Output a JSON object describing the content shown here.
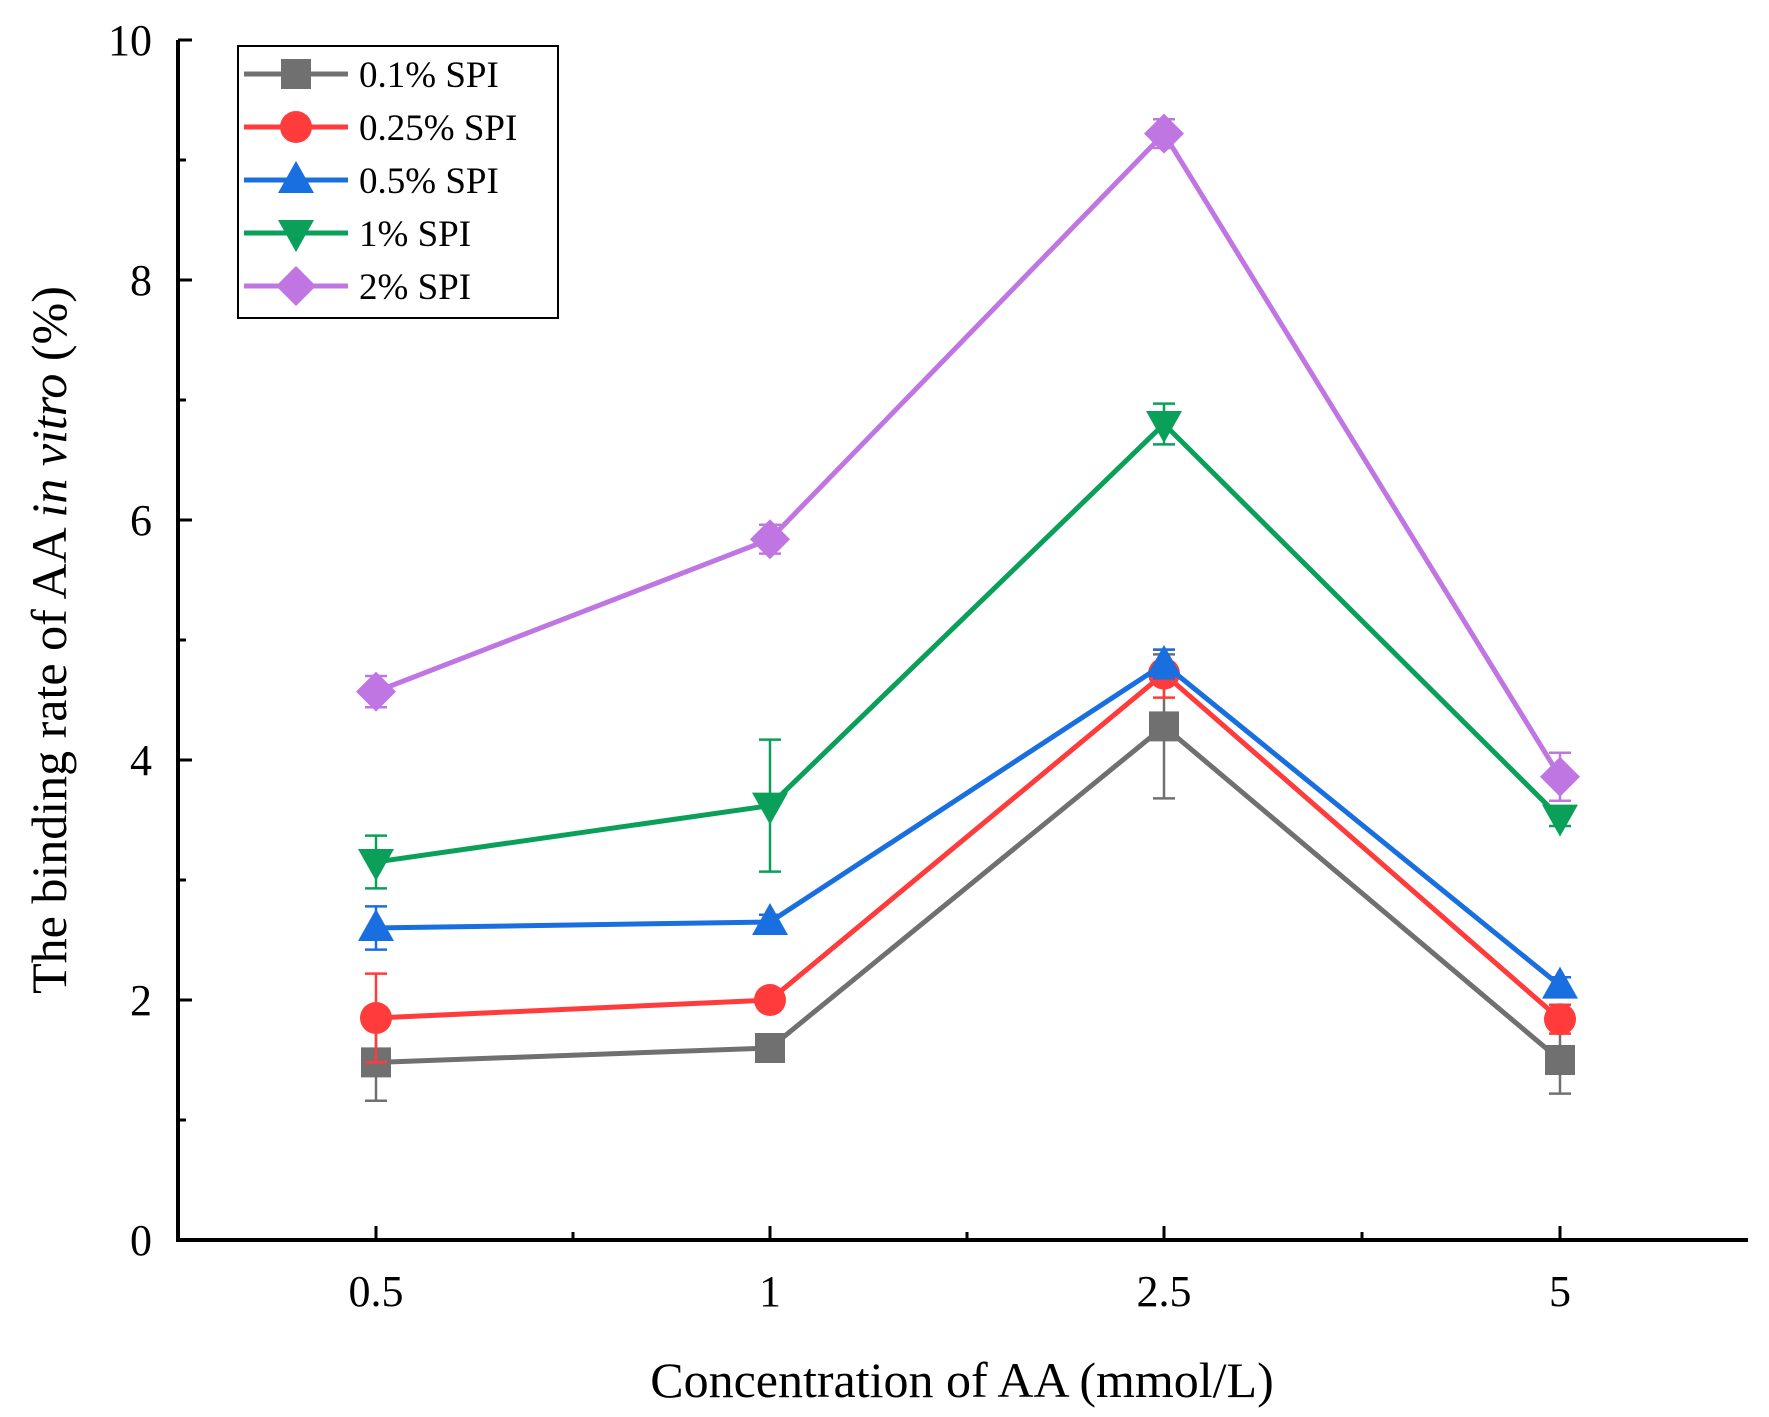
{
  "chart_data": {
    "type": "line",
    "title": "",
    "xlabel": "Concentration of AA (mmol/L)",
    "ylabel_prefix": "The binding rate of AA ",
    "ylabel_italic": "in vitro",
    "ylabel_suffix": " (%)",
    "categories": [
      "0.5",
      "1",
      "2.5",
      "5"
    ],
    "ylim": [
      0,
      10
    ],
    "yticks": [
      0,
      2,
      4,
      6,
      8,
      10
    ],
    "ytick_labels": [
      "0",
      "2",
      "4",
      "6",
      "8",
      "10"
    ],
    "grid": false,
    "legend_position": "top-left",
    "series": [
      {
        "name": "0.1% SPI",
        "color": "#707070",
        "marker": "square",
        "values": [
          1.48,
          1.6,
          4.28,
          1.5
        ],
        "errors": [
          0.32,
          0.04,
          0.6,
          0.28
        ]
      },
      {
        "name": "0.25% SPI",
        "color": "#ff3b3b",
        "marker": "circle",
        "values": [
          1.85,
          2.0,
          4.72,
          1.84
        ],
        "errors": [
          0.37,
          0.04,
          0.2,
          0.12
        ]
      },
      {
        "name": "0.5% SPI",
        "color": "#1a6fe0",
        "marker": "triangle-up",
        "values": [
          2.6,
          2.65,
          4.8,
          2.12
        ],
        "errors": [
          0.18,
          0.06,
          0.12,
          0.07
        ]
      },
      {
        "name": "1% SPI",
        "color": "#0aa05a",
        "marker": "triangle-down",
        "values": [
          3.15,
          3.62,
          6.8,
          3.52
        ],
        "errors": [
          0.22,
          0.55,
          0.17,
          0.07
        ]
      },
      {
        "name": "2% SPI",
        "color": "#c076e2",
        "marker": "diamond",
        "values": [
          4.57,
          5.84,
          9.22,
          3.86
        ],
        "errors": [
          0.13,
          0.12,
          0.12,
          0.2
        ]
      }
    ]
  }
}
